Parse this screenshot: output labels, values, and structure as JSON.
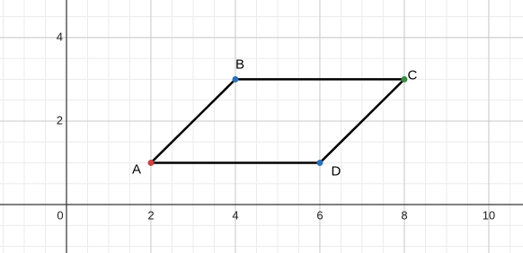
{
  "chart_data": {
    "type": "polygon",
    "x": [
      2,
      4,
      8,
      6
    ],
    "values": [
      1,
      3,
      3,
      1
    ],
    "point_labels": [
      "A",
      "B",
      "C",
      "D"
    ],
    "point_colors": [
      "#c74440",
      "#2d70b3",
      "#388c46",
      "#2d70b3"
    ],
    "line_color": "#000000",
    "xlim": [
      -1.574,
      10.81
    ],
    "ylim": [
      -1.16,
      4.9
    ],
    "xticks": [
      0,
      2,
      4,
      6,
      8,
      10
    ],
    "yticks": [
      2,
      4
    ],
    "grid": true,
    "minor_step": 0.5
  }
}
